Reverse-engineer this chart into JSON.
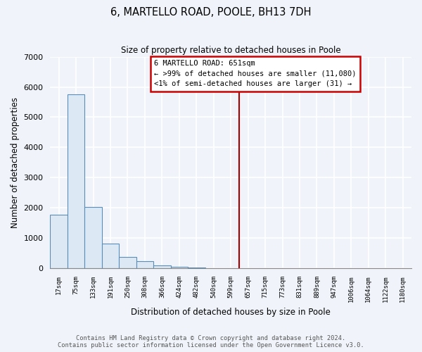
{
  "title": "6, MARTELLO ROAD, POOLE, BH13 7DH",
  "subtitle": "Size of property relative to detached houses in Poole",
  "xlabel": "Distribution of detached houses by size in Poole",
  "ylabel": "Number of detached properties",
  "bar_labels": [
    "17sqm",
    "75sqm",
    "133sqm",
    "191sqm",
    "250sqm",
    "308sqm",
    "366sqm",
    "424sqm",
    "482sqm",
    "540sqm",
    "599sqm",
    "657sqm",
    "715sqm",
    "773sqm",
    "831sqm",
    "889sqm",
    "947sqm",
    "1006sqm",
    "1064sqm",
    "1122sqm",
    "1180sqm"
  ],
  "bar_values": [
    1780,
    5750,
    2040,
    820,
    370,
    230,
    100,
    60,
    30,
    10,
    5,
    2,
    0,
    0,
    0,
    0,
    0,
    0,
    0,
    0,
    0
  ],
  "bar_fill_color": "#dce9f5",
  "bar_edge_color": "#5b8db8",
  "vline_x_index": 11,
  "vline_color": "#aa0000",
  "annotation_text": "6 MARTELLO ROAD: 651sqm\n← >99% of detached houses are smaller (11,080)\n<1% of semi-detached houses are larger (31) →",
  "annotation_box_color": "#ffffff",
  "annotation_box_edge_color": "#cc0000",
  "ylim": [
    0,
    7000
  ],
  "yticks": [
    0,
    1000,
    2000,
    3000,
    4000,
    5000,
    6000,
    7000
  ],
  "footnote": "Contains HM Land Registry data © Crown copyright and database right 2024.\nContains public sector information licensed under the Open Government Licence v3.0.",
  "fig_width": 6.0,
  "fig_height": 5.0,
  "bg_color": "#f0f4fa"
}
